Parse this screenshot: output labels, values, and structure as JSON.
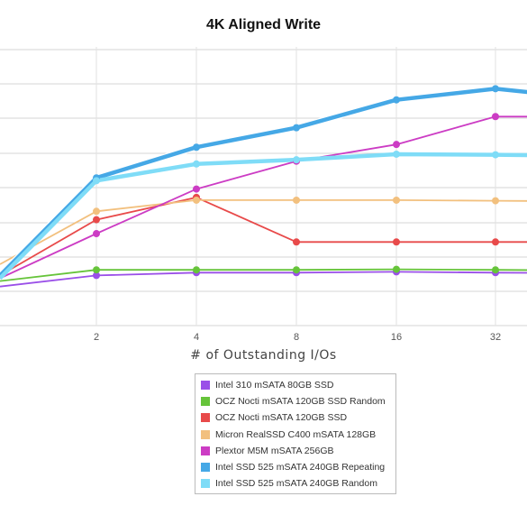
{
  "chart_data": {
    "type": "line",
    "title": "4K Aligned Write",
    "xlabel": "# of Outstanding I/Os",
    "ylabel": "",
    "x_ticks": [
      "2",
      "4",
      "8",
      "16",
      "32"
    ],
    "x": [
      1,
      2,
      4,
      8,
      16,
      32,
      64
    ],
    "ylim": [
      0,
      100
    ],
    "grid": true,
    "legend_position": "bottom",
    "series": [
      {
        "name": "Intel 310 mSATA 80GB SSD",
        "color": "#9a4fe8",
        "values": [
          14,
          18,
          19,
          19,
          19.3,
          19,
          18.8
        ]
      },
      {
        "name": "OCZ Nocti mSATA 120GB SSD Random",
        "color": "#66c43a",
        "values": [
          16,
          20,
          20,
          20,
          20.2,
          20,
          19.8
        ]
      },
      {
        "name": "OCZ Nocti mSATA 120GB SSD",
        "color": "#e84a4a",
        "values": [
          18,
          38,
          46,
          30,
          30,
          30,
          30
        ]
      },
      {
        "name": "Micron RealSSD C400 mSATA 128GB",
        "color": "#f2c07e",
        "values": [
          22,
          41,
          45,
          45,
          45,
          44.8,
          44.6
        ]
      },
      {
        "name": "Plextor M5M mSATA 256GB",
        "color": "#cc3cc4",
        "values": [
          17,
          33,
          49,
          59,
          65,
          75,
          75
        ]
      },
      {
        "name": "Intel SSD 525 mSATA 240GB Repeating",
        "color": "#45a8e6",
        "values": [
          18,
          53,
          64,
          71,
          81,
          85,
          82
        ]
      },
      {
        "name": "Intel SSD 525 mSATA 240GB Random",
        "color": "#7fdcf7",
        "values": [
          17,
          52,
          58,
          59.5,
          61.5,
          61.3,
          61
        ]
      }
    ]
  }
}
